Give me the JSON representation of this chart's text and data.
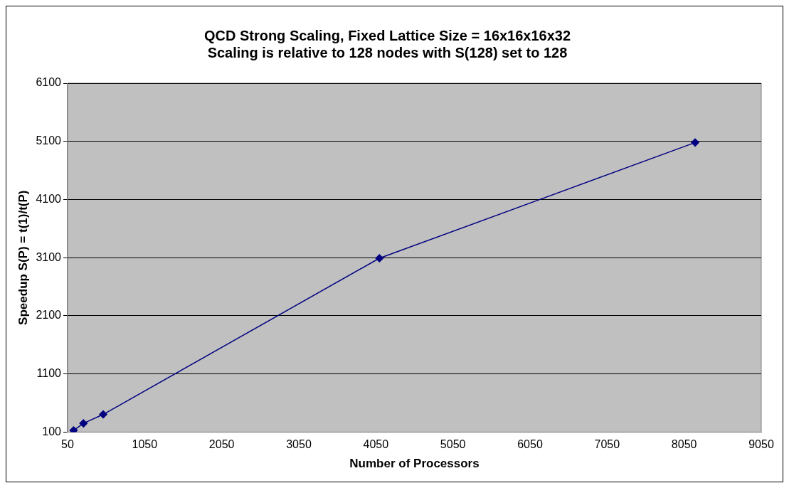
{
  "chart_data": {
    "type": "line",
    "title": "QCD Strong Scaling, Fixed Lattice Size = 16x16x16x32\nScaling is relative to 128 nodes with S(128) set to 128",
    "xlabel": "Number of Processors",
    "ylabel": "Speedup S(P) = t(1)/t(P)",
    "x": [
      128,
      256,
      512,
      4096,
      8192
    ],
    "series": [
      {
        "color": "#000080",
        "values": [
          128,
          250,
          404,
          3090,
          5080
        ]
      }
    ],
    "xlim": [
      50,
      9050
    ],
    "xticks": [
      50,
      1050,
      2050,
      3050,
      4050,
      5050,
      6050,
      7050,
      8050,
      9050
    ],
    "ylim": [
      100,
      6100
    ],
    "yticks": [
      100,
      1100,
      2100,
      3100,
      4100,
      5100,
      6100
    ],
    "grid": "y",
    "legend": false,
    "marker": "diamond",
    "line_style": "solid"
  }
}
